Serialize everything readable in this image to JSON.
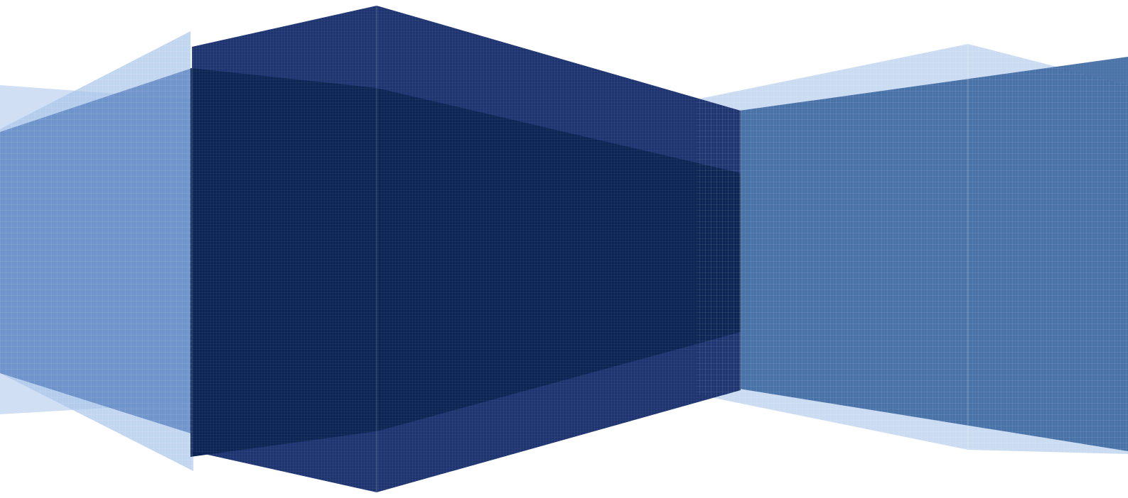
{
  "artwork": {
    "name": "abstract-blue-geometric-cover",
    "colors": {
      "background": "#ffffff",
      "light_blue": "#a9c5ea",
      "mid_blue": "#5b84c2",
      "steel_blue": "#3a659e",
      "navy": "#1e3470",
      "deep_navy": "#0b2454"
    }
  }
}
